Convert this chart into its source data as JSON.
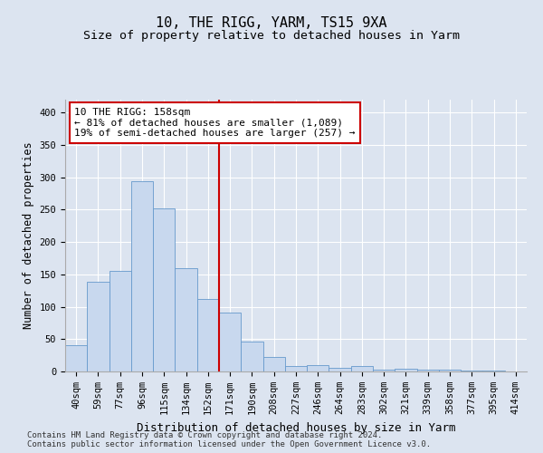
{
  "title": "10, THE RIGG, YARM, TS15 9XA",
  "subtitle": "Size of property relative to detached houses in Yarm",
  "xlabel": "Distribution of detached houses by size in Yarm",
  "ylabel": "Number of detached properties",
  "bar_labels": [
    "40sqm",
    "59sqm",
    "77sqm",
    "96sqm",
    "115sqm",
    "134sqm",
    "152sqm",
    "171sqm",
    "190sqm",
    "208sqm",
    "227sqm",
    "246sqm",
    "264sqm",
    "283sqm",
    "302sqm",
    "321sqm",
    "339sqm",
    "358sqm",
    "377sqm",
    "395sqm",
    "414sqm"
  ],
  "bar_values": [
    41,
    139,
    155,
    294,
    252,
    160,
    112,
    91,
    46,
    23,
    8,
    10,
    5,
    8,
    3,
    4,
    3,
    3,
    2,
    2,
    0
  ],
  "bar_color": "#c8d8ee",
  "bar_edge_color": "#6699cc",
  "vline_x": 6.5,
  "vline_color": "#cc0000",
  "annotation_text": "10 THE RIGG: 158sqm\n← 81% of detached houses are smaller (1,089)\n19% of semi-detached houses are larger (257) →",
  "annotation_box_facecolor": "#ffffff",
  "annotation_box_edgecolor": "#cc0000",
  "ylim": [
    0,
    420
  ],
  "yticks": [
    0,
    50,
    100,
    150,
    200,
    250,
    300,
    350,
    400
  ],
  "fig_bg_color": "#dce4f0",
  "plot_bg_color": "#dce4f0",
  "footer": "Contains HM Land Registry data © Crown copyright and database right 2024.\nContains public sector information licensed under the Open Government Licence v3.0.",
  "title_fontsize": 11,
  "subtitle_fontsize": 9.5,
  "xlabel_fontsize": 9,
  "ylabel_fontsize": 8.5,
  "tick_fontsize": 7.5,
  "footer_fontsize": 6.5,
  "annot_fontsize": 8
}
